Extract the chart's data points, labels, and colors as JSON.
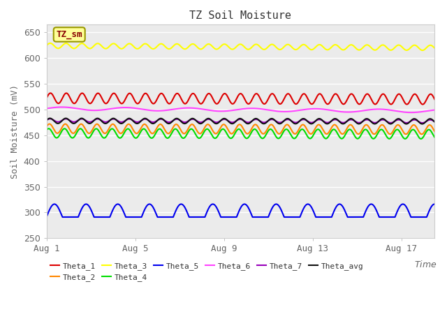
{
  "title": "TZ Soil Moisture",
  "ylabel": "Soil Moisture (mV)",
  "ylim": [
    250,
    665
  ],
  "yticks": [
    250,
    300,
    350,
    400,
    450,
    500,
    550,
    600,
    650
  ],
  "axes_bg": "#ebebeb",
  "fig_bg": "#ffffff",
  "series": [
    {
      "name": "Theta_1",
      "color": "#dd0000",
      "mean": 522,
      "amp": 10,
      "freq_day": 1.4,
      "phase": 0.0,
      "trend": -2,
      "style": "sine"
    },
    {
      "name": "Theta_2",
      "color": "#ff8800",
      "mean": 463,
      "amp": 9,
      "freq_day": 1.4,
      "phase": 0.4,
      "trend": -2,
      "style": "sine"
    },
    {
      "name": "Theta_3",
      "color": "#ffff00",
      "mean": 624,
      "amp": 5,
      "freq_day": 1.4,
      "phase": 0.1,
      "trend": -4,
      "style": "sine"
    },
    {
      "name": "Theta_4",
      "color": "#00dd00",
      "mean": 454,
      "amp": 9,
      "freq_day": 1.4,
      "phase": 0.7,
      "trend": -2,
      "style": "sine"
    },
    {
      "name": "Theta_5",
      "color": "#0000ee",
      "mean": 291,
      "amp": 14,
      "freq_day": 1.4,
      "phase": 0.0,
      "trend": 0,
      "style": "peak"
    },
    {
      "name": "Theta_6",
      "color": "#ff44ff",
      "mean": 502,
      "amp": 3,
      "freq_day": 0.35,
      "phase": 0.0,
      "trend": -5,
      "style": "sine"
    },
    {
      "name": "Theta_7",
      "color": "#9900bb",
      "mean": 479,
      "amp": 3,
      "freq_day": 1.4,
      "phase": 0.15,
      "trend": -2,
      "style": "sine"
    },
    {
      "name": "Theta_avg",
      "color": "#111111",
      "mean": 478,
      "amp": 5,
      "freq_day": 1.4,
      "phase": 0.2,
      "trend": -1,
      "style": "sine"
    }
  ],
  "n_days": 17.5,
  "xtick_positions": [
    0,
    4,
    8,
    12,
    16
  ],
  "xtick_labels": [
    "Aug 1",
    "Aug 5",
    "Aug 9",
    "Aug 13",
    "Aug 17"
  ],
  "legend_label": "TZ_sm",
  "legend_bg": "#ffff99",
  "legend_edge": "#999900",
  "legend_text_color": "#880000",
  "title_fontsize": 11,
  "axis_label_fontsize": 9,
  "tick_fontsize": 9,
  "tick_color": "#666666",
  "grid_color": "#ffffff",
  "line_width": 1.5
}
